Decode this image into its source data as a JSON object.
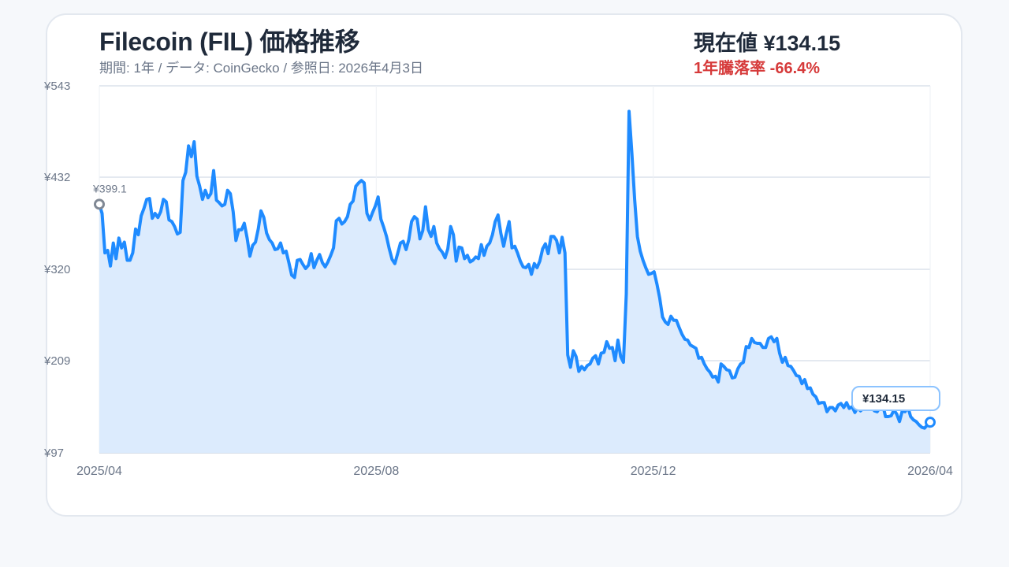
{
  "header": {
    "title": "Filecoin (FIL) 価格推移",
    "subtitle": "期間: 1年 / データ: CoinGecko / 参照日: 2026年4月3日",
    "current_value": "現在値 ¥134.15",
    "change": "1年騰落率 -66.4%"
  },
  "colors": {
    "line": "#1f8bff",
    "fill": "#dcebfd",
    "negative": "#d63a3a",
    "grid": "#c9d3e2",
    "start_marker": "#808894"
  },
  "annotations": {
    "start_label": "¥399.1",
    "end_label": "¥134.15"
  },
  "chart_data": {
    "type": "area",
    "title": "Filecoin (FIL) 価格推移",
    "subtitle": "期間: 1年 / データ: CoinGecko / 参照日: 2026年4月3日",
    "xlabel": "",
    "ylabel": "",
    "x_tick_labels": [
      "2025/04",
      "2025/08",
      "2025/12",
      "2026/04"
    ],
    "y_tick_labels": [
      "¥543",
      "¥432",
      "¥320",
      "¥209",
      "¥97"
    ],
    "y_ticks": [
      543,
      432,
      320,
      209,
      97
    ],
    "ylim": [
      97,
      543
    ],
    "grid": true,
    "legend": "none",
    "series": [
      {
        "name": "FIL/JPY",
        "start": 399.1,
        "end": 134.15,
        "values": [
          399.1,
          388,
          340,
          343,
          324,
          352,
          333,
          358,
          346,
          353,
          331,
          331,
          340,
          369,
          362,
          385,
          394,
          405,
          406,
          382,
          388,
          383,
          390,
          405,
          402,
          380,
          378,
          372,
          363,
          365,
          428,
          438,
          470,
          457,
          475,
          433,
          421,
          405,
          416,
          407,
          412,
          440,
          404,
          401,
          397,
          399,
          416,
          412,
          390,
          355,
          368,
          368,
          376,
          358,
          336,
          349,
          353,
          369,
          391,
          383,
          364,
          356,
          352,
          344,
          345,
          352,
          340,
          342,
          328,
          313,
          310,
          331,
          332,
          326,
          321,
          325,
          339,
          322,
          331,
          338,
          328,
          323,
          329,
          337,
          346,
          379,
          382,
          375,
          378,
          384,
          399,
          403,
          421,
          425,
          428,
          425,
          388,
          380,
          389,
          397,
          408,
          381,
          371,
          360,
          345,
          332,
          327,
          339,
          352,
          354,
          344,
          356,
          378,
          384,
          381,
          357,
          367,
          396,
          368,
          360,
          372,
          352,
          345,
          341,
          334,
          345,
          372,
          362,
          330,
          347,
          346,
          333,
          337,
          329,
          331,
          335,
          333,
          350,
          337,
          348,
          352,
          362,
          378,
          386,
          364,
          348,
          364,
          378,
          346,
          348,
          340,
          330,
          323,
          322,
          326,
          314,
          327,
          322,
          330,
          345,
          351,
          339,
          360,
          360,
          355,
          340,
          359,
          340,
          216,
          201,
          221,
          214,
          196,
          202,
          198,
          203,
          205,
          212,
          215,
          205,
          218,
          219,
          232,
          224,
          225,
          209,
          234,
          214,
          207,
          290,
          512,
          461,
          405,
          360,
          342,
          331,
          322,
          314,
          315,
          317,
          302,
          285,
          262,
          256,
          253,
          263,
          258,
          258,
          249,
          241,
          235,
          234,
          228,
          226,
          224,
          212,
          213,
          205,
          199,
          195,
          189,
          190,
          183,
          205,
          202,
          198,
          197,
          188,
          189,
          199,
          205,
          207,
          226,
          225,
          236,
          231,
          230,
          230,
          225,
          225,
          236,
          238,
          232,
          236,
          218,
          207,
          213,
          203,
          202,
          197,
          191,
          190,
          181,
          186,
          175,
          176,
          168,
          165,
          157,
          158,
          158,
          147,
          152,
          152,
          148,
          155,
          157,
          152,
          158,
          151,
          153,
          146,
          152,
          148,
          151,
          167,
          160,
          153,
          148,
          147,
          152,
          155,
          141,
          141,
          142,
          149,
          144,
          135,
          148,
          147,
          153,
          141,
          137,
          135,
          131,
          128,
          127,
          131,
          134.15
        ]
      }
    ]
  }
}
